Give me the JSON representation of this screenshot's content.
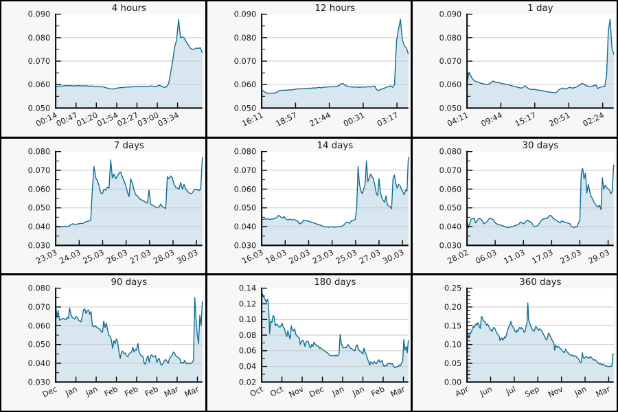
{
  "window": {
    "background": "#f7f7f7",
    "divider_color": "#000000"
  },
  "style": {
    "line_color": "#0b6c92",
    "fill_color": "#d8e6ef",
    "grid_color": "#c6c6c6",
    "axis_color": "#000000",
    "plot_background": "#ffffff",
    "text_color": "#1a1a1a"
  },
  "chart_data": [
    {
      "type": "area",
      "title": "4 hours",
      "ylim": [
        0.05,
        0.09
      ],
      "ytick_labels": [
        "0.050",
        "0.060",
        "0.070",
        "0.080",
        "0.090"
      ],
      "y_minor_divisions": 2,
      "xtick_labels": [
        "00:14",
        "00:47",
        "01:20",
        "01:54",
        "02:27",
        "03:00",
        "03:34"
      ],
      "xtick_positions": [
        0,
        0.139,
        0.277,
        0.416,
        0.554,
        0.693,
        0.831
      ],
      "values": [
        0.0592,
        0.0593,
        0.0594,
        0.0593,
        0.0595,
        0.0596,
        0.0595,
        0.0596,
        0.0595,
        0.0594,
        0.0595,
        0.0596,
        0.0595,
        0.0595,
        0.0594,
        0.0595,
        0.0594,
        0.0593,
        0.0594,
        0.0593,
        0.0592,
        0.0593,
        0.0592,
        0.0591,
        0.059,
        0.0588,
        0.0585,
        0.0583,
        0.0582,
        0.0581,
        0.0583,
        0.0585,
        0.0586,
        0.0588,
        0.0587,
        0.0589,
        0.059,
        0.0589,
        0.0591,
        0.059,
        0.0592,
        0.0591,
        0.0592,
        0.0593,
        0.0592,
        0.0593,
        0.0592,
        0.0593,
        0.0594,
        0.0593,
        0.0592,
        0.0593,
        0.0597,
        0.0595,
        0.059,
        0.0588,
        0.0591,
        0.0605,
        0.065,
        0.07,
        0.076,
        0.079,
        0.0878,
        0.08,
        0.0803,
        0.0798,
        0.078,
        0.0768,
        0.0755,
        0.075,
        0.0752,
        0.0756,
        0.0754,
        0.0757,
        0.0735
      ]
    },
    {
      "type": "area",
      "title": "12 hours",
      "ylim": [
        0.05,
        0.09
      ],
      "ytick_labels": [
        "0.050",
        "0.060",
        "0.070",
        "0.080",
        "0.090"
      ],
      "y_minor_divisions": 2,
      "xtick_labels": [
        "16:11",
        "18:57",
        "21:44",
        "00:31",
        "03:17"
      ],
      "xtick_positions": [
        0,
        0.231,
        0.461,
        0.692,
        0.922
      ],
      "values": [
        0.0576,
        0.0572,
        0.0566,
        0.0563,
        0.0562,
        0.0564,
        0.0563,
        0.0565,
        0.057,
        0.0574,
        0.0576,
        0.0575,
        0.0577,
        0.0576,
        0.0578,
        0.0577,
        0.0579,
        0.058,
        0.0582,
        0.0581,
        0.0583,
        0.0582,
        0.0584,
        0.0583,
        0.0585,
        0.0584,
        0.0586,
        0.0585,
        0.0587,
        0.0588,
        0.0586,
        0.0588,
        0.059,
        0.0589,
        0.0591,
        0.059,
        0.0592,
        0.0591,
        0.0593,
        0.0596,
        0.0603,
        0.0605,
        0.0598,
        0.0594,
        0.0592,
        0.059,
        0.0589,
        0.059,
        0.0589,
        0.0588,
        0.0589,
        0.059,
        0.0589,
        0.059,
        0.0591,
        0.059,
        0.0592,
        0.0594,
        0.0578,
        0.0575,
        0.0579,
        0.0582,
        0.0585,
        0.0589,
        0.0592,
        0.0595,
        0.0588,
        0.06,
        0.0785,
        0.0835,
        0.0878,
        0.079,
        0.0765,
        0.0756,
        0.073
      ]
    },
    {
      "type": "area",
      "title": "1 day",
      "ylim": [
        0.05,
        0.09
      ],
      "ytick_labels": [
        "0.050",
        "0.060",
        "0.070",
        "0.080",
        "0.090"
      ],
      "y_minor_divisions": 2,
      "xtick_labels": [
        "04:11",
        "09:44",
        "15:17",
        "20:51",
        "02:24"
      ],
      "xtick_positions": [
        0,
        0.231,
        0.462,
        0.694,
        0.925
      ],
      "values": [
        0.0605,
        0.0648,
        0.064,
        0.0625,
        0.0618,
        0.0613,
        0.0611,
        0.0608,
        0.0605,
        0.0604,
        0.0602,
        0.0601,
        0.06,
        0.0605,
        0.0612,
        0.0615,
        0.061,
        0.0608,
        0.0609,
        0.0606,
        0.0604,
        0.0603,
        0.0601,
        0.06,
        0.0598,
        0.0596,
        0.0594,
        0.0592,
        0.059,
        0.0588,
        0.0586,
        0.0585,
        0.059,
        0.0595,
        0.0588,
        0.0582,
        0.058,
        0.0579,
        0.058,
        0.0578,
        0.0577,
        0.0576,
        0.0575,
        0.0573,
        0.0572,
        0.057,
        0.0569,
        0.0568,
        0.0567,
        0.0566,
        0.0565,
        0.057,
        0.0578,
        0.0582,
        0.0585,
        0.0583,
        0.0581,
        0.0585,
        0.0588,
        0.0586,
        0.0585,
        0.0588,
        0.059,
        0.0595,
        0.06,
        0.0605,
        0.0603,
        0.0597,
        0.0594,
        0.0593,
        0.0592,
        0.0594,
        0.0596,
        0.0598,
        0.0583,
        0.0588,
        0.059,
        0.0593,
        0.0592,
        0.064,
        0.083,
        0.0878,
        0.076,
        0.0728
      ]
    },
    {
      "type": "area",
      "title": "7 days",
      "ylim": [
        0.03,
        0.08
      ],
      "ytick_labels": [
        "0.030",
        "0.040",
        "0.050",
        "0.060",
        "0.070",
        "0.080"
      ],
      "y_minor_divisions": 2,
      "xtick_labels": [
        "23.03",
        "24.03",
        "25.03",
        "26.03",
        "27.03",
        "28.03",
        "30.03"
      ],
      "xtick_positions": [
        0,
        0.16,
        0.32,
        0.48,
        0.64,
        0.8,
        0.96
      ],
      "values": [
        0.0405,
        0.0398,
        0.04,
        0.0399,
        0.0401,
        0.04,
        0.0402,
        0.0401,
        0.0403,
        0.041,
        0.0415,
        0.0413,
        0.0412,
        0.0414,
        0.0415,
        0.0418,
        0.0416,
        0.042,
        0.0425,
        0.0428,
        0.043,
        0.0435,
        0.06,
        0.072,
        0.066,
        0.0645,
        0.062,
        0.058,
        0.0575,
        0.06,
        0.0595,
        0.061,
        0.0605,
        0.0755,
        0.066,
        0.068,
        0.0655,
        0.067,
        0.0685,
        0.069,
        0.0665,
        0.0645,
        0.062,
        0.0585,
        0.056,
        0.0655,
        0.063,
        0.0595,
        0.057,
        0.0565,
        0.055,
        0.0545,
        0.054,
        0.0535,
        0.053,
        0.0525,
        0.0595,
        0.052,
        0.0515,
        0.051,
        0.0505,
        0.05,
        0.0505,
        0.052,
        0.0505,
        0.0503,
        0.0495,
        0.0665,
        0.0655,
        0.067,
        0.066,
        0.0625,
        0.061,
        0.0605,
        0.06,
        0.0635,
        0.06,
        0.0625,
        0.06,
        0.059,
        0.058,
        0.0575,
        0.058,
        0.0595,
        0.06,
        0.0595,
        0.0593,
        0.0598,
        0.077
      ]
    },
    {
      "type": "area",
      "title": "14 days",
      "ylim": [
        0.03,
        0.08
      ],
      "ytick_labels": [
        "0.030",
        "0.040",
        "0.050",
        "0.060",
        "0.070",
        "0.080"
      ],
      "y_minor_divisions": 2,
      "xtick_labels": [
        "16.03",
        "18.03",
        "20.03",
        "23.03",
        "25.03",
        "27.03",
        "30.03"
      ],
      "xtick_positions": [
        0,
        0.16,
        0.32,
        0.48,
        0.64,
        0.8,
        0.96
      ],
      "values": [
        0.044,
        0.0438,
        0.0441,
        0.0439,
        0.0442,
        0.044,
        0.0438,
        0.0441,
        0.044,
        0.0443,
        0.0445,
        0.045,
        0.046,
        0.0455,
        0.045,
        0.0445,
        0.0455,
        0.0442,
        0.0438,
        0.0435,
        0.044,
        0.0438,
        0.0436,
        0.0438,
        0.0435,
        0.0432,
        0.0428,
        0.0415,
        0.0418,
        0.0422,
        0.0435,
        0.0432,
        0.0431,
        0.043,
        0.0428,
        0.0425,
        0.0422,
        0.042,
        0.0418,
        0.0415,
        0.0412,
        0.041,
        0.0408,
        0.0405,
        0.0402,
        0.04,
        0.0398,
        0.04,
        0.0396,
        0.0398,
        0.04,
        0.0398,
        0.0396,
        0.0399,
        0.0398,
        0.04,
        0.0402,
        0.04,
        0.0405,
        0.041,
        0.042,
        0.0425,
        0.042,
        0.0418,
        0.043,
        0.0432,
        0.0435,
        0.0438,
        0.05,
        0.072,
        0.0625,
        0.059,
        0.0575,
        0.06,
        0.0625,
        0.075,
        0.064,
        0.066,
        0.068,
        0.0665,
        0.0655,
        0.062,
        0.058,
        0.0565,
        0.0655,
        0.058,
        0.0555,
        0.054,
        0.053,
        0.0565,
        0.0515,
        0.051,
        0.0505,
        0.0495,
        0.0655,
        0.0675,
        0.063,
        0.0605,
        0.0625,
        0.062,
        0.06,
        0.0585,
        0.057,
        0.0595,
        0.059,
        0.077
      ]
    },
    {
      "type": "area",
      "title": "30 days",
      "ylim": [
        0.03,
        0.08
      ],
      "ytick_labels": [
        "0.030",
        "0.040",
        "0.050",
        "0.060",
        "0.070",
        "0.080"
      ],
      "y_minor_divisions": 2,
      "xtick_labels": [
        "28.02",
        "06.03",
        "11.03",
        "17.03",
        "23.03",
        "29.03"
      ],
      "xtick_positions": [
        0,
        0.192,
        0.385,
        0.577,
        0.769,
        0.962
      ],
      "values": [
        0.043,
        0.0395,
        0.042,
        0.044,
        0.0442,
        0.0445,
        0.042,
        0.0428,
        0.044,
        0.0445,
        0.0438,
        0.043,
        0.0415,
        0.042,
        0.0425,
        0.0435,
        0.0445,
        0.0442,
        0.044,
        0.0435,
        0.042,
        0.0415,
        0.0412,
        0.041,
        0.0408,
        0.0405,
        0.0402,
        0.04,
        0.0396,
        0.0395,
        0.0398,
        0.0397,
        0.04,
        0.0402,
        0.0405,
        0.0408,
        0.041,
        0.0415,
        0.0425,
        0.042,
        0.0415,
        0.042,
        0.043,
        0.0435,
        0.0428,
        0.0425,
        0.042,
        0.0405,
        0.04,
        0.0402,
        0.0405,
        0.0415,
        0.0425,
        0.0435,
        0.044,
        0.0442,
        0.0445,
        0.0444,
        0.0455,
        0.046,
        0.0455,
        0.0445,
        0.044,
        0.0435,
        0.043,
        0.0425,
        0.042,
        0.043,
        0.0428,
        0.0425,
        0.0422,
        0.042,
        0.0418,
        0.0415,
        0.04,
        0.0398,
        0.0395,
        0.04,
        0.0398,
        0.042,
        0.043,
        0.068,
        0.071,
        0.0655,
        0.0685,
        0.058,
        0.0625,
        0.059,
        0.056,
        0.055,
        0.053,
        0.052,
        0.051,
        0.0505,
        0.0515,
        0.049,
        0.066,
        0.06,
        0.062,
        0.061,
        0.06,
        0.0595,
        0.0575,
        0.059,
        0.073
      ]
    },
    {
      "type": "area",
      "title": "90 days",
      "ylim": [
        0.03,
        0.08
      ],
      "ytick_labels": [
        "0.030",
        "0.040",
        "0.050",
        "0.060",
        "0.070",
        "0.080"
      ],
      "y_minor_divisions": 2,
      "xtick_labels": [
        "Dec",
        "Jan",
        "Jan",
        "Feb",
        "Feb",
        "Feb",
        "Mar",
        "Mar"
      ],
      "xtick_positions": [
        0,
        0.138,
        0.276,
        0.414,
        0.552,
        0.69,
        0.828,
        0.966
      ],
      "values": [
        0.071,
        0.0645,
        0.068,
        0.063,
        0.0632,
        0.0635,
        0.064,
        0.0636,
        0.0632,
        0.0645,
        0.0638,
        0.0695,
        0.066,
        0.0645,
        0.064,
        0.0635,
        0.065,
        0.0645,
        0.063,
        0.0625,
        0.062,
        0.065,
        0.0685,
        0.069,
        0.0665,
        0.068,
        0.0685,
        0.066,
        0.0675,
        0.06,
        0.0595,
        0.06,
        0.0595,
        0.059,
        0.0585,
        0.058,
        0.057,
        0.0565,
        0.0625,
        0.059,
        0.0615,
        0.058,
        0.055,
        0.0545,
        0.0525,
        0.048,
        0.052,
        0.0505,
        0.053,
        0.051,
        0.0465,
        0.0425,
        0.046,
        0.0465,
        0.045,
        0.0455,
        0.044,
        0.0435,
        0.045,
        0.0455,
        0.046,
        0.0485,
        0.046,
        0.0475,
        0.047,
        0.0505,
        0.046,
        0.0445,
        0.044,
        0.0435,
        0.04,
        0.0395,
        0.0425,
        0.044,
        0.0405,
        0.044,
        0.0445,
        0.0435,
        0.0435,
        0.044,
        0.0405,
        0.042,
        0.0425,
        0.0395,
        0.039,
        0.04,
        0.0415,
        0.042,
        0.041,
        0.04,
        0.0425,
        0.0435,
        0.044,
        0.046,
        0.0455,
        0.044,
        0.0435,
        0.043,
        0.0425,
        0.04,
        0.0405,
        0.04,
        0.0415,
        0.04,
        0.0398,
        0.0402,
        0.0398,
        0.04,
        0.0405,
        0.0415,
        0.075,
        0.0635,
        0.055,
        0.0505,
        0.0655,
        0.06,
        0.073
      ]
    },
    {
      "type": "area",
      "title": "180 days",
      "ylim": [
        0.02,
        0.14
      ],
      "ytick_labels": [
        "0.02",
        "0.04",
        "0.06",
        "0.08",
        "0.10",
        "0.12",
        "0.14"
      ],
      "y_minor_divisions": 2,
      "xtick_labels": [
        "Oct",
        "Oct",
        "Nov",
        "Dec",
        "Jan",
        "Jan",
        "Feb",
        "Mar"
      ],
      "xtick_positions": [
        0,
        0.138,
        0.276,
        0.414,
        0.552,
        0.69,
        0.828,
        0.966
      ],
      "values": [
        0.135,
        0.131,
        0.128,
        0.1255,
        0.122,
        0.126,
        0.121,
        0.082,
        0.098,
        0.096,
        0.105,
        0.103,
        0.092,
        0.094,
        0.093,
        0.091,
        0.09,
        0.092,
        0.095,
        0.09,
        0.0885,
        0.082,
        0.078,
        0.0855,
        0.08,
        0.075,
        0.092,
        0.086,
        0.0855,
        0.088,
        0.081,
        0.079,
        0.0775,
        0.0765,
        0.068,
        0.072,
        0.0735,
        0.0715,
        0.0655,
        0.071,
        0.0725,
        0.0715,
        0.066,
        0.0635,
        0.068,
        0.0655,
        0.071,
        0.0685,
        0.067,
        0.066,
        0.0655,
        0.063,
        0.064,
        0.062,
        0.0615,
        0.06,
        0.059,
        0.058,
        0.057,
        0.0555,
        0.0545,
        0.0535,
        0.054,
        0.0535,
        0.0545,
        0.0535,
        0.0545,
        0.0535,
        0.056,
        0.081,
        0.069,
        0.0655,
        0.0635,
        0.0645,
        0.0635,
        0.066,
        0.068,
        0.0655,
        0.0635,
        0.063,
        0.0615,
        0.0605,
        0.06,
        0.066,
        0.0675,
        0.0625,
        0.06,
        0.059,
        0.0575,
        0.056,
        0.0635,
        0.058,
        0.055,
        0.05,
        0.046,
        0.0415,
        0.046,
        0.0445,
        0.043,
        0.0465,
        0.044,
        0.0435,
        0.047,
        0.0485,
        0.045,
        0.0465,
        0.0475,
        0.041,
        0.04,
        0.0415,
        0.0405,
        0.044,
        0.0435,
        0.044,
        0.0425,
        0.0435,
        0.04,
        0.0385,
        0.039,
        0.04,
        0.0395,
        0.042,
        0.041,
        0.044,
        0.0465,
        0.0745,
        0.061,
        0.0655,
        0.0575,
        0.0735
      ]
    },
    {
      "type": "area",
      "title": "360 days",
      "ylim": [
        0.0,
        0.25
      ],
      "ytick_labels": [
        "0.00",
        "0.05",
        "0.10",
        "0.15",
        "0.20",
        "0.25"
      ],
      "y_minor_divisions": 5,
      "xtick_labels": [
        "Apr",
        "Jun",
        "Jul",
        "Sep",
        "Nov",
        "Jan",
        "Mar"
      ],
      "xtick_positions": [
        0,
        0.161,
        0.322,
        0.483,
        0.644,
        0.805,
        0.966
      ],
      "values": [
        0.13,
        0.128,
        0.118,
        0.125,
        0.13,
        0.135,
        0.142,
        0.148,
        0.145,
        0.15,
        0.155,
        0.152,
        0.158,
        0.155,
        0.145,
        0.143,
        0.175,
        0.172,
        0.165,
        0.162,
        0.16,
        0.155,
        0.152,
        0.155,
        0.15,
        0.145,
        0.14,
        0.138,
        0.135,
        0.142,
        0.146,
        0.143,
        0.138,
        0.132,
        0.128,
        0.125,
        0.122,
        0.11,
        0.115,
        0.118,
        0.112,
        0.115,
        0.12,
        0.118,
        0.125,
        0.135,
        0.142,
        0.148,
        0.152,
        0.162,
        0.152,
        0.148,
        0.145,
        0.14,
        0.135,
        0.132,
        0.138,
        0.135,
        0.142,
        0.146,
        0.142,
        0.145,
        0.142,
        0.138,
        0.132,
        0.135,
        0.148,
        0.155,
        0.211,
        0.165,
        0.158,
        0.15,
        0.145,
        0.14,
        0.138,
        0.135,
        0.142,
        0.148,
        0.145,
        0.14,
        0.138,
        0.142,
        0.14,
        0.138,
        0.135,
        0.13,
        0.125,
        0.12,
        0.115,
        0.112,
        0.118,
        0.13,
        0.128,
        0.122,
        0.118,
        0.112,
        0.108,
        0.105,
        0.085,
        0.098,
        0.095,
        0.092,
        0.095,
        0.093,
        0.09,
        0.088,
        0.085,
        0.082,
        0.08,
        0.078,
        0.088,
        0.085,
        0.08,
        0.078,
        0.075,
        0.073,
        0.072,
        0.07,
        0.072,
        0.07,
        0.068,
        0.07,
        0.068,
        0.065,
        0.063,
        0.06,
        0.055,
        0.052,
        0.055,
        0.078,
        0.065,
        0.063,
        0.065,
        0.068,
        0.067,
        0.065,
        0.063,
        0.065,
        0.068,
        0.065,
        0.063,
        0.06,
        0.058,
        0.06,
        0.058,
        0.055,
        0.052,
        0.05,
        0.048,
        0.05,
        0.047,
        0.045,
        0.048,
        0.046,
        0.044,
        0.042,
        0.043,
        0.042,
        0.04,
        0.042,
        0.041,
        0.043,
        0.042,
        0.075,
        0.073
      ]
    }
  ]
}
